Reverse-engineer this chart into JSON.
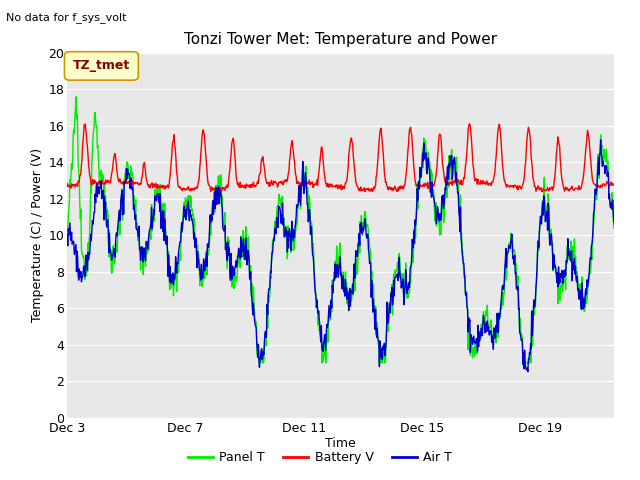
{
  "title": "Tonzi Tower Met: Temperature and Power",
  "top_left_text": "No data for f_sys_volt",
  "ylabel": "Temperature (C) / Power (V)",
  "xlabel": "Time",
  "ylim": [
    0,
    20
  ],
  "yticks": [
    0,
    2,
    4,
    6,
    8,
    10,
    12,
    14,
    16,
    18,
    20
  ],
  "xtick_labels": [
    "Dec 3",
    "Dec 7",
    "Dec 11",
    "Dec 15",
    "Dec 19"
  ],
  "xtick_pos": [
    0,
    4,
    8,
    12,
    16
  ],
  "xlim": [
    0,
    18.5
  ],
  "fig_bg_color": "#ffffff",
  "plot_bg_color": "#e8e8e8",
  "grid_color": "#ffffff",
  "legend_label_panel": "Panel T",
  "legend_label_battery": "Battery V",
  "legend_label_air": "Air T",
  "legend_box_text": "TZ_tmet",
  "legend_box_bg": "#ffffcc",
  "legend_box_border": "#cc9900",
  "panel_color": "#00ee00",
  "battery_color": "#ff0000",
  "air_color": "#0000cc",
  "n_points": 1000
}
